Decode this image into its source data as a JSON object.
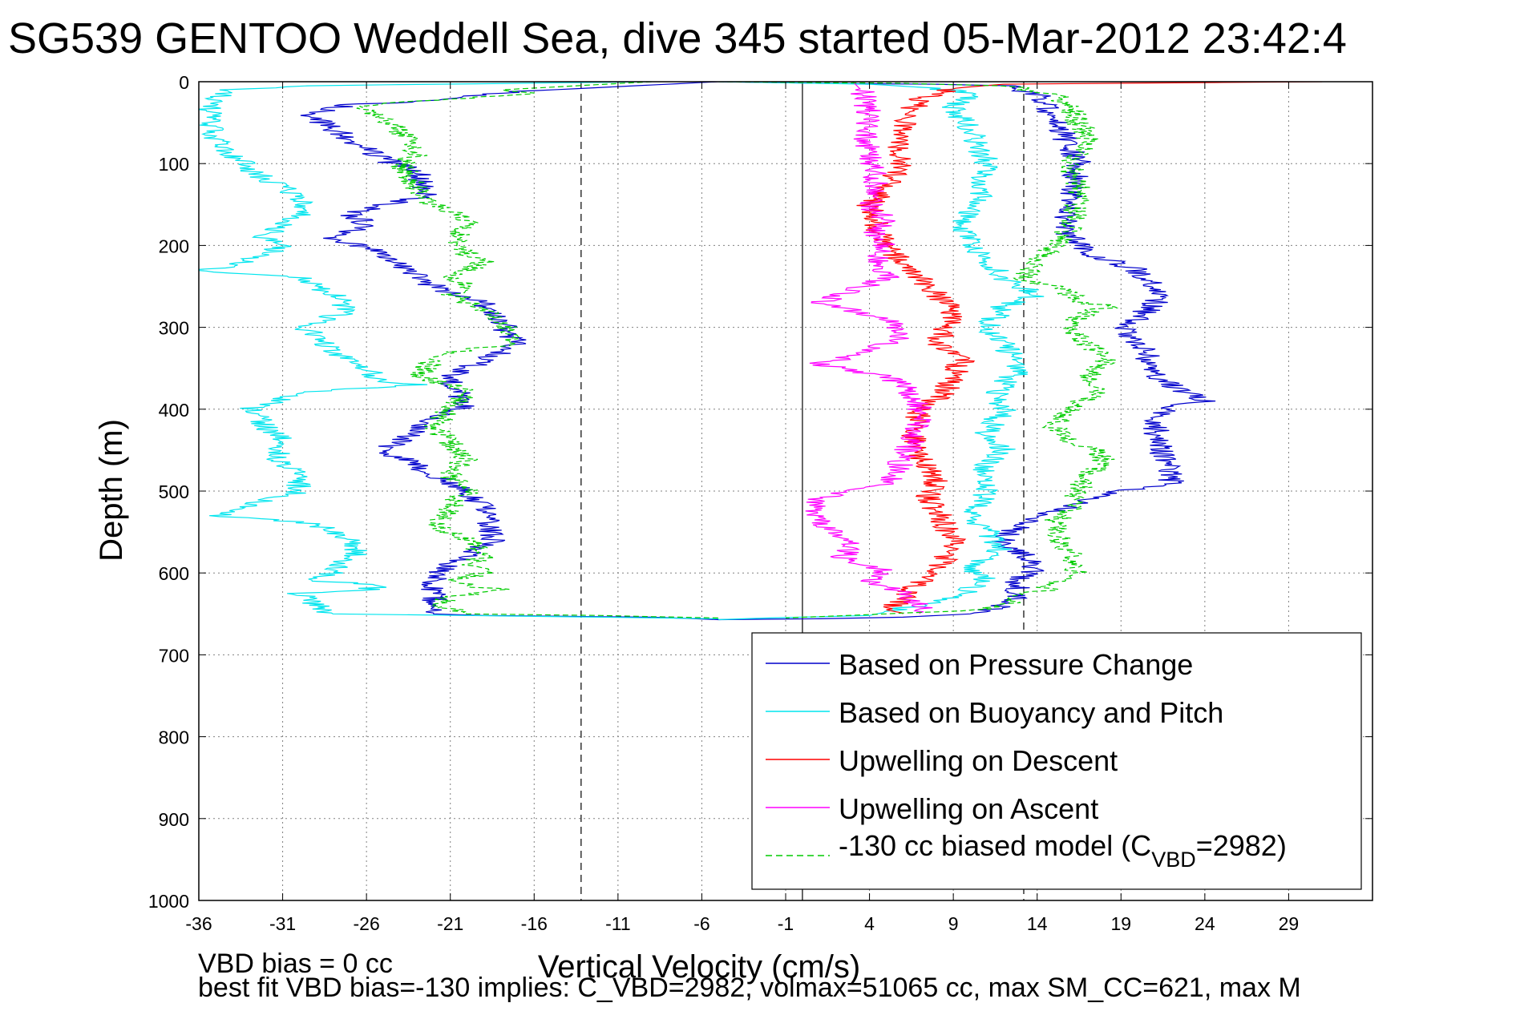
{
  "chart_data": {
    "type": "line",
    "title": "SG539 GENTOO Weddell Sea, dive 345 started 05-Mar-2012 23:42:4",
    "xlabel": "Vertical Velocity (cm/s)",
    "ylabel": "Depth (m)",
    "xlim": [
      -36,
      34
    ],
    "ylim": [
      0,
      1000
    ],
    "y_reversed": true,
    "grid": true,
    "x_ticks": [
      -36,
      -31,
      -26,
      -21,
      -16,
      -11,
      -6,
      -1,
      4,
      9,
      14,
      19,
      24,
      29
    ],
    "y_ticks": [
      0,
      100,
      200,
      300,
      400,
      500,
      600,
      700,
      800,
      900,
      1000
    ],
    "vertical_reference_lines": [
      {
        "x": 0,
        "style": "solid"
      },
      {
        "x": -13.2,
        "style": "dashed"
      },
      {
        "x": 13.2,
        "style": "dashed"
      }
    ],
    "legend_position": "bottom-right",
    "series": [
      {
        "name": "Based on Pressure Change",
        "color": "#0000cc",
        "style": "solid",
        "segments": [
          {
            "x": [
              -5,
              -17,
              -19,
              -23,
              -27,
              -29.5,
              -27,
              -25,
              -23,
              -22.5,
              -27,
              -26,
              -28,
              -25,
              -23,
              -22,
              -19,
              -18,
              -17,
              -19,
              -21,
              -20.5,
              -20,
              -22,
              -23,
              -25,
              -23,
              -21,
              -19,
              -18.5,
              -20,
              -22,
              -22,
              -22,
              -19,
              -9,
              -5
            ],
            "y": [
              0,
              12,
              15,
              25,
              28,
              40,
              70,
              95,
              110,
              140,
              160,
              175,
              190,
              210,
              235,
              250,
              270,
              295,
              320,
              340,
              360,
              380,
              395,
              410,
              425,
              450,
              470,
              490,
              520,
              560,
              580,
              600,
              620,
              650,
              652,
              654,
              657
            ]
          },
          {
            "x": [
              -5,
              1,
              8,
              12,
              14,
              16,
              16.5,
              16,
              15.5,
              16.5,
              17,
              20,
              21.5,
              20,
              19,
              20.5,
              21,
              24,
              22,
              21,
              22,
              19,
              17,
              15,
              13,
              12,
              12.5,
              13.5,
              14,
              13.5,
              12.5,
              13,
              12,
              10,
              6,
              1,
              -5
            ],
            "y": [
              0,
              2,
              3,
              5,
              15,
              80,
              100,
              140,
              180,
              200,
              210,
              230,
              260,
              290,
              300,
              330,
              360,
              390,
              395,
              420,
              490,
              500,
              510,
              525,
              540,
              560,
              570,
              580,
              590,
              600,
              610,
              625,
              640,
              650,
              654,
              656,
              657
            ]
          }
        ]
      },
      {
        "name": "Based on Buoyancy and Pitch",
        "color": "#00e5ee",
        "style": "solid",
        "segments": [
          {
            "x": [
              -9,
              -30,
              -34,
              -35.5,
              -35,
              -34,
              -32,
              -30,
              -29.5,
              -31,
              -32,
              -31,
              -32.5,
              -34,
              -36,
              -30,
              -28,
              -27,
              -30,
              -29,
              -28,
              -27,
              -25,
              -23,
              -27,
              -30,
              -33,
              -32,
              -31,
              -31.5,
              -30,
              -30,
              -35,
              -29,
              -27,
              -26.5,
              -27.5,
              -28,
              -29,
              -27,
              -25,
              -26,
              -30,
              -28,
              -20,
              -12,
              -5
            ],
            "y": [
              0,
              5,
              10,
              30,
              70,
              90,
              120,
              140,
              160,
              170,
              190,
              200,
              215,
              225,
              230,
              240,
              260,
              280,
              300,
              310,
              330,
              340,
              365,
              370,
              375,
              380,
              400,
              420,
              440,
              460,
              480,
              500,
              530,
              540,
              560,
              575,
              585,
              600,
              610,
              612,
              615,
              620,
              625,
              650,
              652,
              654,
              656
            ]
          },
          {
            "x": [
              -5,
              4,
              8,
              10,
              9,
              10,
              11,
              10.5,
              9.5,
              10,
              11,
              12,
              14,
              12,
              11,
              12,
              13,
              11.5,
              12,
              11,
              12,
              10.5,
              11,
              10,
              11.5,
              12,
              10,
              11,
              9,
              4,
              -2,
              -5
            ],
            "y": [
              0,
              3,
              8,
              15,
              30,
              60,
              100,
              140,
              170,
              190,
              220,
              240,
              260,
              275,
              300,
              320,
              350,
              380,
              400,
              430,
              450,
              480,
              500,
              530,
              560,
              570,
              590,
              610,
              630,
              652,
              655,
              657
            ]
          }
        ]
      },
      {
        "name": "Upwelling on Descent",
        "color": "#ff0000",
        "style": "solid",
        "segments": [
          {
            "x": [
              31,
              12,
              9,
              7,
              6,
              5.5,
              6,
              5,
              4,
              4.5,
              5,
              6,
              7,
              8,
              9,
              8.5,
              8,
              9.5,
              9,
              8.5,
              7,
              6.5,
              7,
              8,
              7.5,
              8.5,
              9,
              8.5,
              8,
              7,
              6.5,
              5.5,
              6
            ],
            "y": [
              0,
              3,
              8,
              20,
              50,
              80,
              100,
              130,
              150,
              180,
              200,
              220,
              240,
              260,
              280,
              300,
              320,
              340,
              360,
              380,
              400,
              430,
              460,
              490,
              510,
              540,
              560,
              580,
              600,
              610,
              620,
              640,
              650
            ]
          }
        ]
      },
      {
        "name": "Upwelling on Ascent",
        "color": "#ff00ff",
        "style": "solid",
        "segments": [
          {
            "x": [
              3,
              3.5,
              4,
              3.8,
              4.2,
              4.5,
              4,
              5,
              4,
              5,
              4.5,
              5,
              1,
              3,
              5,
              6,
              4,
              1,
              5,
              6,
              6.5,
              7,
              7,
              6.5,
              6,
              5.5,
              5,
              3,
              0.5,
              1,
              2,
              3,
              2.5,
              3,
              2,
              4,
              5,
              4,
              5.5,
              7,
              7
            ],
            "y": [
              0,
              10,
              40,
              70,
              100,
              130,
              150,
              170,
              190,
              200,
              220,
              240,
              270,
              280,
              290,
              310,
              330,
              345,
              360,
              370,
              385,
              400,
              420,
              440,
              460,
              480,
              490,
              500,
              510,
              540,
              550,
              560,
              570,
              575,
              580,
              590,
              600,
              610,
              620,
              640,
              650
            ]
          }
        ]
      },
      {
        "name": "-130 cc biased model (C_VBD=2982)",
        "color": "#00cc00",
        "style": "dashed",
        "segments": [
          {
            "x": [
              -9,
              -18,
              -16,
              -24,
              -26,
              -25.5,
              -24,
              -23,
              -24,
              -23,
              -22,
              -21,
              -20,
              -21,
              -19,
              -20,
              -21,
              -20,
              -21,
              -18,
              -17,
              -21,
              -22,
              -23,
              -21,
              -20,
              -21,
              -22,
              -21,
              -20,
              -21,
              -20,
              -21,
              -22,
              -20,
              -19,
              -20,
              -19,
              -21,
              -20,
              -18,
              -21,
              -22,
              -20,
              -12,
              -5
            ],
            "y": [
              0,
              10,
              15,
              25,
              30,
              40,
              60,
              90,
              100,
              130,
              150,
              160,
              170,
              200,
              220,
              230,
              240,
              250,
              260,
              290,
              320,
              330,
              340,
              360,
              370,
              380,
              400,
              420,
              440,
              460,
              480,
              500,
              520,
              540,
              560,
              580,
              590,
              600,
              610,
              615,
              620,
              630,
              640,
              650,
              652,
              655
            ]
          },
          {
            "x": [
              -5,
              6,
              12,
              15,
              16,
              17,
              16,
              16.5,
              16,
              15,
              14,
              13,
              15,
              16,
              17,
              18.5,
              17,
              16,
              17,
              18,
              17,
              17.5,
              16,
              15,
              16,
              17.5,
              18,
              17,
              16.5,
              16,
              15,
              15.5,
              16,
              16.5,
              15,
              14.5,
              13,
              12,
              10,
              5,
              -1
            ],
            "y": [
              0,
              2,
              5,
              15,
              30,
              70,
              100,
              140,
              180,
              200,
              220,
              240,
              250,
              260,
              270,
              275,
              280,
              300,
              320,
              340,
              360,
              380,
              400,
              420,
              440,
              450,
              460,
              480,
              500,
              520,
              540,
              560,
              580,
              600,
              610,
              620,
              630,
              640,
              645,
              650,
              655
            ]
          }
        ]
      }
    ]
  },
  "legend": {
    "entries": [
      {
        "label": "Based on Pressure Change",
        "color": "#0000cc",
        "style": "solid"
      },
      {
        "label": "Based on Buoyancy and Pitch",
        "color": "#00e5ee",
        "style": "solid"
      },
      {
        "label": "Upwelling on Descent",
        "color": "#ff0000",
        "style": "solid"
      },
      {
        "label": "Upwelling on Ascent",
        "color": "#ff00ff",
        "style": "solid"
      },
      {
        "label_prefix": "-130 cc biased model (C",
        "label_sub": "VBD",
        "label_suffix": "=2982)",
        "color": "#00cc00",
        "style": "dashed"
      }
    ]
  },
  "footer": {
    "line1": "VBD bias = 0 cc",
    "line2": "best fit VBD bias=-130 implies: C_VBD=2982, volmax=51065 cc, max SM_CC=621, max M"
  }
}
